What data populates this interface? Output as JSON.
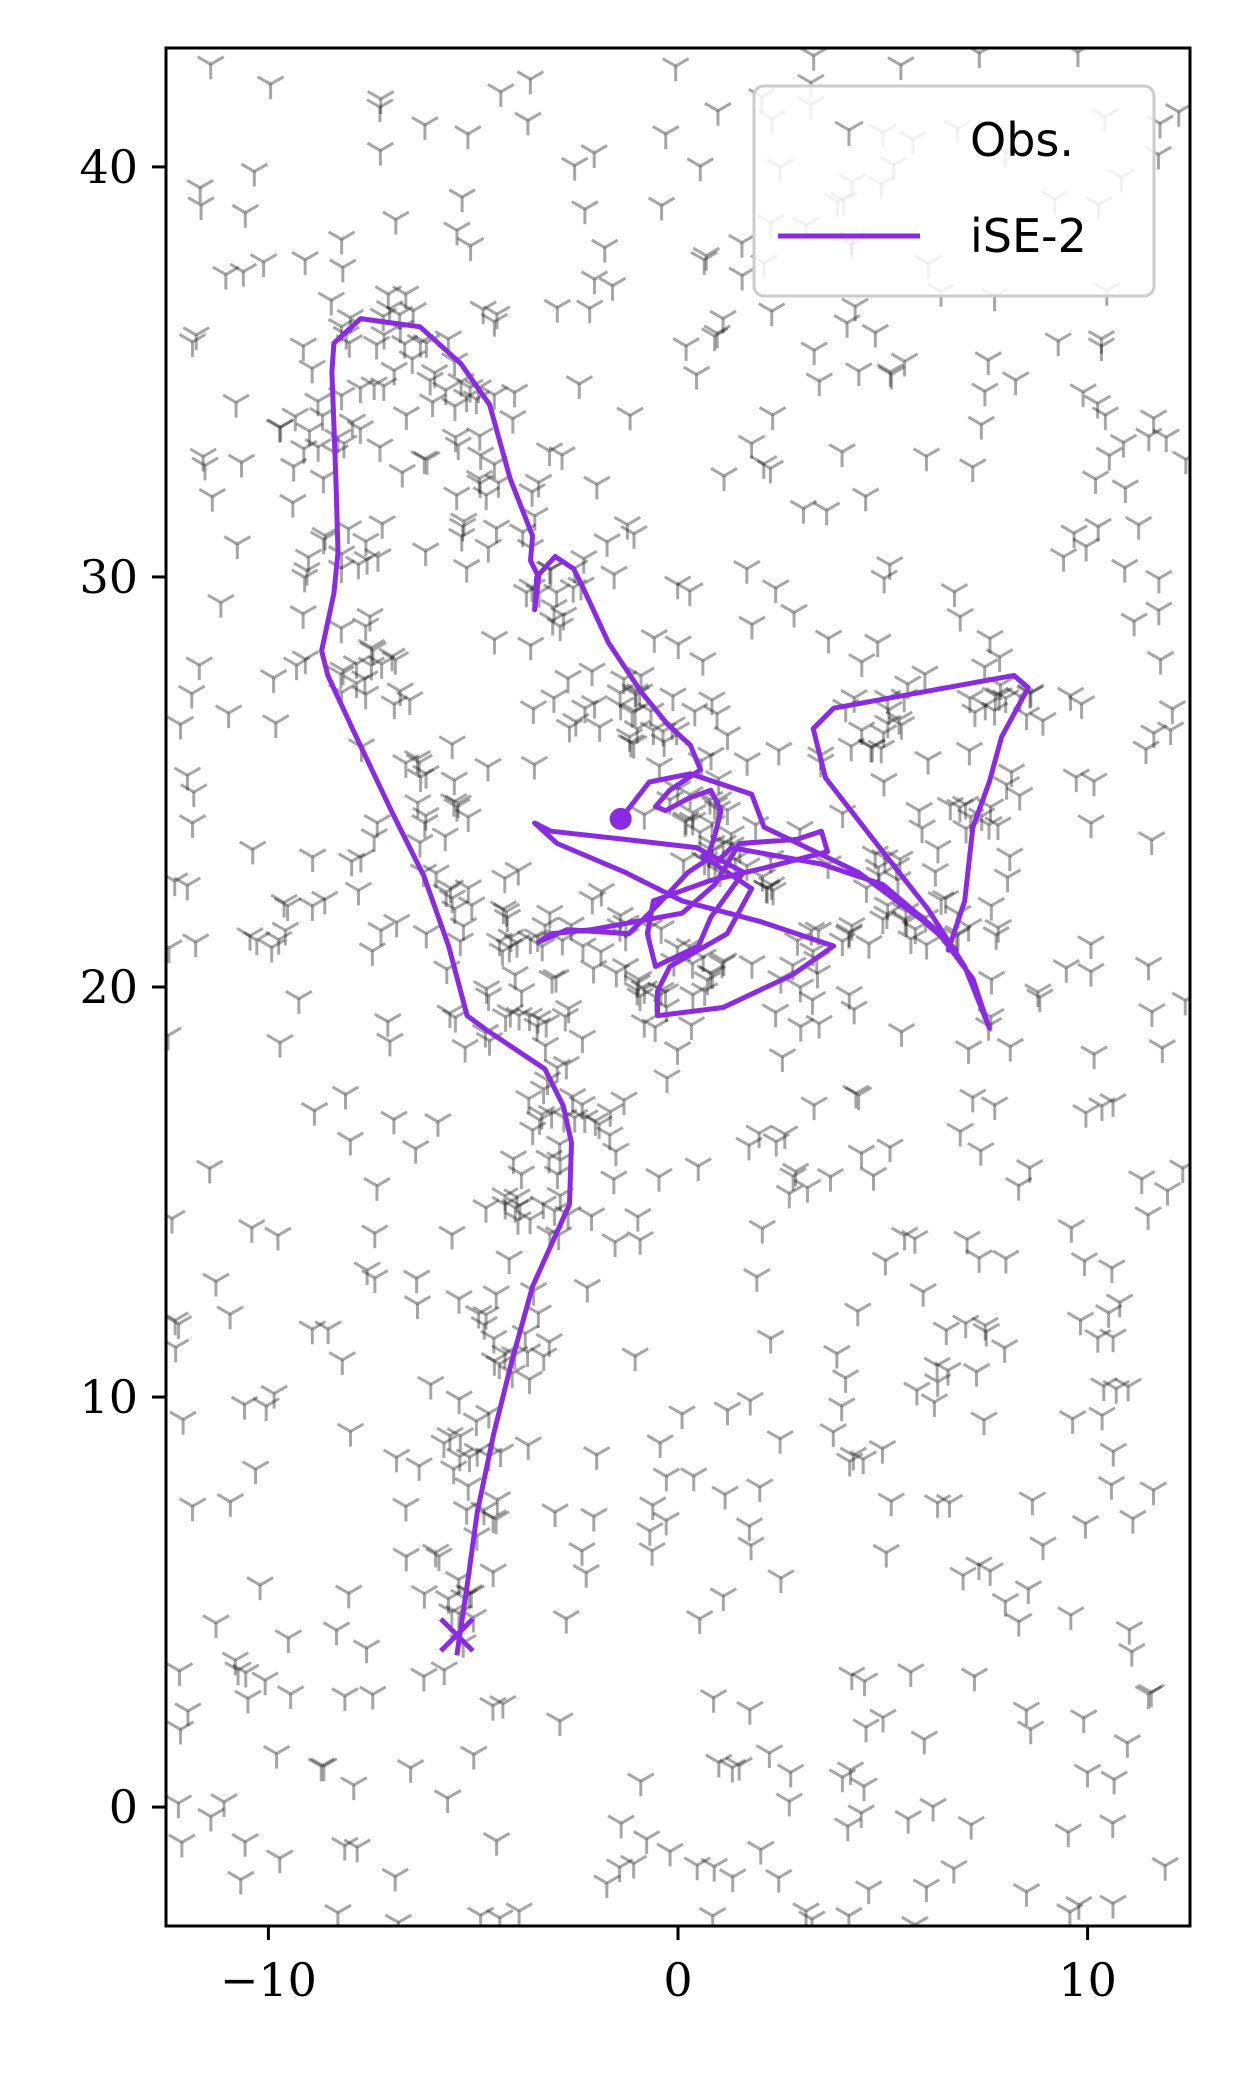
{
  "chart_data": {
    "type": "scatter",
    "title": "",
    "xlabel": "",
    "ylabel": "",
    "xlim": [
      -12.5,
      12.5
    ],
    "ylim": [
      -2.9,
      42.9
    ],
    "xticks": [
      -10,
      0,
      10
    ],
    "xtick_labels": [
      "−10",
      "0",
      "10"
    ],
    "yticks": [
      0,
      10,
      20,
      30,
      40
    ],
    "ytick_labels": [
      "0",
      "10",
      "20",
      "30",
      "40"
    ],
    "grid": false,
    "legend": {
      "placement": "top-right",
      "entries": [
        "Obs.",
        "iSE-2"
      ]
    },
    "series": [
      {
        "name": "Obs.",
        "kind": "scatter",
        "marker": "tri-down",
        "color": "#000000",
        "alpha": 0.35,
        "description_of_points": "dense cloud of observation markers covering the plot, denser along the trajectory",
        "cluster_centers": [
          [
            -5.3,
            5.5
          ],
          [
            -5.0,
            8.5
          ],
          [
            -4.3,
            11.5
          ],
          [
            -3.4,
            14.5
          ],
          [
            -3.0,
            17.0
          ],
          [
            -4.3,
            19.5
          ],
          [
            -5.3,
            22.0
          ],
          [
            -6.3,
            24.5
          ],
          [
            -7.5,
            27.5
          ],
          [
            -8.4,
            30.5
          ],
          [
            -8.3,
            33.5
          ],
          [
            -7.3,
            36.0
          ],
          [
            -5.3,
            34.5
          ],
          [
            -4.0,
            31.5
          ],
          [
            -3.0,
            29.5
          ],
          [
            -1.5,
            27.5
          ],
          [
            -0.3,
            26.0
          ],
          [
            0.8,
            24.2
          ],
          [
            1.5,
            23.3
          ],
          [
            -1.5,
            21.0
          ],
          [
            0.5,
            20.2
          ],
          [
            3.0,
            21.0
          ],
          [
            5.0,
            22.8
          ],
          [
            6.6,
            21.5
          ],
          [
            7.3,
            24.0
          ],
          [
            5.2,
            26.2
          ],
          [
            7.6,
            27.2
          ],
          [
            -3.2,
            20.8
          ]
        ]
      },
      {
        "name": "iSE-2",
        "kind": "line",
        "color": "#8a2be2",
        "start_marker": "x",
        "end_marker": "dot",
        "x": [
          -5.4,
          -5.15,
          -4.9,
          -4.5,
          -4.05,
          -3.55,
          -2.65,
          -2.6,
          -2.8,
          -3.25,
          -4.6,
          -5.15,
          -5.6,
          -6.2,
          -7.0,
          -7.9,
          -8.55,
          -8.7,
          -8.4,
          -8.3,
          -8.35,
          -8.4,
          -8.45,
          -8.4,
          -7.75,
          -6.3,
          -5.3,
          -4.6,
          -4.1,
          -3.55,
          -3.6,
          -3.4,
          -3.5,
          -3.45,
          -3.0,
          -2.55,
          -2.3,
          -1.7,
          -0.9,
          -0.25,
          0.3,
          0.55,
          0.25,
          -0.2,
          -0.55,
          -0.3,
          0.25,
          0.8,
          1.05,
          0.9,
          0.7,
          0.25,
          -0.5,
          -1.2,
          -2.7,
          -3.4,
          -3.1,
          -2.1,
          0.1,
          0.9,
          1.5,
          2.9,
          3.5,
          3.65,
          2.1,
          0.8,
          -0.6,
          -0.75,
          -0.55,
          0.5,
          0.8,
          1.6,
          0.45,
          -1.3,
          -3.1,
          -3.5,
          -2.95,
          -1.3,
          0.1,
          2.0,
          3.8,
          2.8,
          1.1,
          -0.5,
          -0.5,
          -0.2,
          1.2,
          1.8,
          0.6,
          0.9,
          1.3,
          3.5,
          5.0,
          6.3,
          7.2,
          7.6,
          7.0,
          6.1,
          5.0,
          3.6,
          3.3,
          3.8,
          6.0,
          8.2,
          8.55,
          7.9,
          7.6,
          7.2,
          7.0,
          6.6,
          6.8,
          6.0,
          4.4,
          2.1,
          1.8,
          0.3,
          -0.7,
          -1.4
        ],
        "y": [
          3.7,
          5.4,
          7.2,
          9.1,
          10.9,
          12.7,
          14.7,
          16.2,
          17.1,
          18.0,
          18.9,
          19.3,
          21.0,
          22.7,
          24.3,
          26.2,
          27.6,
          28.2,
          29.6,
          30.6,
          32.3,
          33.7,
          35.0,
          35.7,
          36.3,
          36.1,
          35.2,
          34.2,
          32.4,
          31.0,
          30.4,
          30.0,
          29.2,
          30.0,
          30.5,
          30.2,
          29.7,
          28.4,
          27.2,
          26.4,
          25.9,
          25.3,
          25.1,
          24.8,
          24.4,
          24.3,
          24.6,
          24.8,
          24.3,
          23.7,
          23.1,
          22.8,
          22.0,
          21.3,
          21.4,
          21.1,
          21.3,
          21.4,
          21.8,
          22.5,
          23.5,
          23.6,
          23.8,
          23.3,
          22.9,
          22.6,
          22.1,
          21.3,
          20.5,
          21.0,
          21.7,
          22.8,
          23.4,
          23.6,
          23.8,
          24.0,
          23.5,
          22.8,
          22.1,
          21.6,
          21.0,
          20.3,
          19.5,
          19.3,
          19.9,
          20.5,
          21.3,
          22.4,
          23.2,
          23.0,
          23.4,
          23.0,
          22.5,
          21.4,
          20.2,
          19.0,
          20.5,
          21.9,
          23.3,
          25.1,
          26.3,
          26.8,
          27.2,
          27.6,
          27.3,
          26.1,
          25.0,
          23.9,
          22.1,
          20.9,
          20.9,
          21.6,
          22.8,
          23.9,
          24.7,
          25.2,
          25.0,
          24.1
        ]
      }
    ]
  },
  "legend": {
    "obs_label": "Obs.",
    "line_label": "iSE-2"
  },
  "colors": {
    "trajectory": "#8a2be2",
    "observation": "#000000",
    "legend_border": "#cccccc"
  }
}
